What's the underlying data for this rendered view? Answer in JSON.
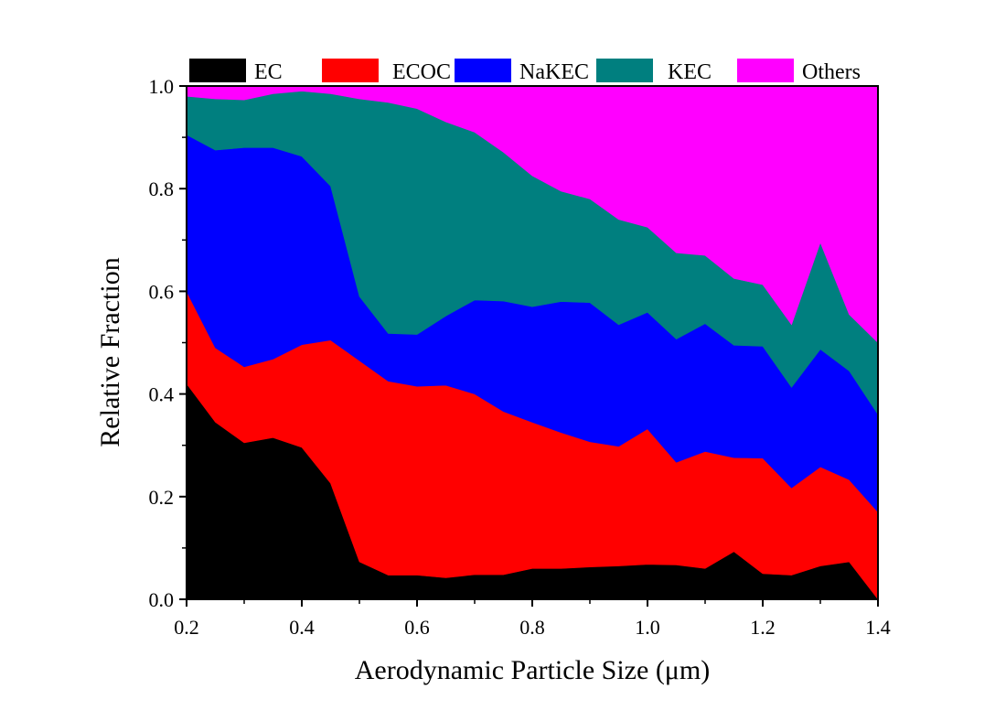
{
  "chart_data": {
    "type": "area",
    "stacked": true,
    "xlabel": "Aerodynamic Particle Size (μm)",
    "ylabel": "Relative Fraction",
    "xlim": [
      0.2,
      1.4
    ],
    "ylim": [
      0.0,
      1.0
    ],
    "xticks": [
      "0.2",
      "0.4",
      "0.6",
      "0.8",
      "1.0",
      "1.2",
      "1.4"
    ],
    "yticks": [
      "0.0",
      "0.2",
      "0.4",
      "0.6",
      "0.8",
      "1.0"
    ],
    "grid": false,
    "legend_position": "top",
    "x": [
      0.2,
      0.25,
      0.3,
      0.35,
      0.4,
      0.45,
      0.5,
      0.55,
      0.6,
      0.65,
      0.7,
      0.75,
      0.8,
      0.85,
      0.9,
      0.95,
      1.0,
      1.05,
      1.1,
      1.15,
      1.2,
      1.25,
      1.3,
      1.35,
      1.4
    ],
    "series": [
      {
        "name": "EC",
        "color": "#000000",
        "values": [
          0.42,
          0.345,
          0.305,
          0.315,
          0.296,
          0.226,
          0.073,
          0.047,
          0.047,
          0.042,
          0.048,
          0.048,
          0.06,
          0.06,
          0.063,
          0.065,
          0.068,
          0.067,
          0.06,
          0.093,
          0.05,
          0.047,
          0.065,
          0.073,
          0.0
        ]
      },
      {
        "name": "ECOC",
        "color": "#ff0000",
        "values": [
          0.18,
          0.145,
          0.148,
          0.153,
          0.2,
          0.279,
          0.392,
          0.378,
          0.368,
          0.375,
          0.352,
          0.318,
          0.285,
          0.265,
          0.244,
          0.233,
          0.264,
          0.2,
          0.228,
          0.183,
          0.225,
          0.17,
          0.193,
          0.16,
          0.17
        ]
      },
      {
        "name": "NaKEC",
        "color": "#0000ff",
        "values": [
          0.305,
          0.385,
          0.427,
          0.412,
          0.367,
          0.3,
          0.125,
          0.093,
          0.101,
          0.135,
          0.183,
          0.215,
          0.225,
          0.255,
          0.271,
          0.237,
          0.227,
          0.24,
          0.249,
          0.219,
          0.218,
          0.196,
          0.229,
          0.212,
          0.19
        ]
      },
      {
        "name": "KEC",
        "color": "#007f7f",
        "values": [
          0.075,
          0.1,
          0.093,
          0.105,
          0.127,
          0.18,
          0.385,
          0.45,
          0.44,
          0.378,
          0.327,
          0.29,
          0.255,
          0.215,
          0.202,
          0.205,
          0.166,
          0.168,
          0.133,
          0.13,
          0.12,
          0.122,
          0.208,
          0.11,
          0.14
        ]
      },
      {
        "name": "Others",
        "color": "#ff00ff",
        "values": [
          0.02,
          0.025,
          0.027,
          0.015,
          0.01,
          0.015,
          0.025,
          0.032,
          0.044,
          0.07,
          0.09,
          0.129,
          0.175,
          0.205,
          0.22,
          0.26,
          0.275,
          0.325,
          0.33,
          0.375,
          0.387,
          0.465,
          0.305,
          0.445,
          0.5
        ]
      }
    ]
  }
}
